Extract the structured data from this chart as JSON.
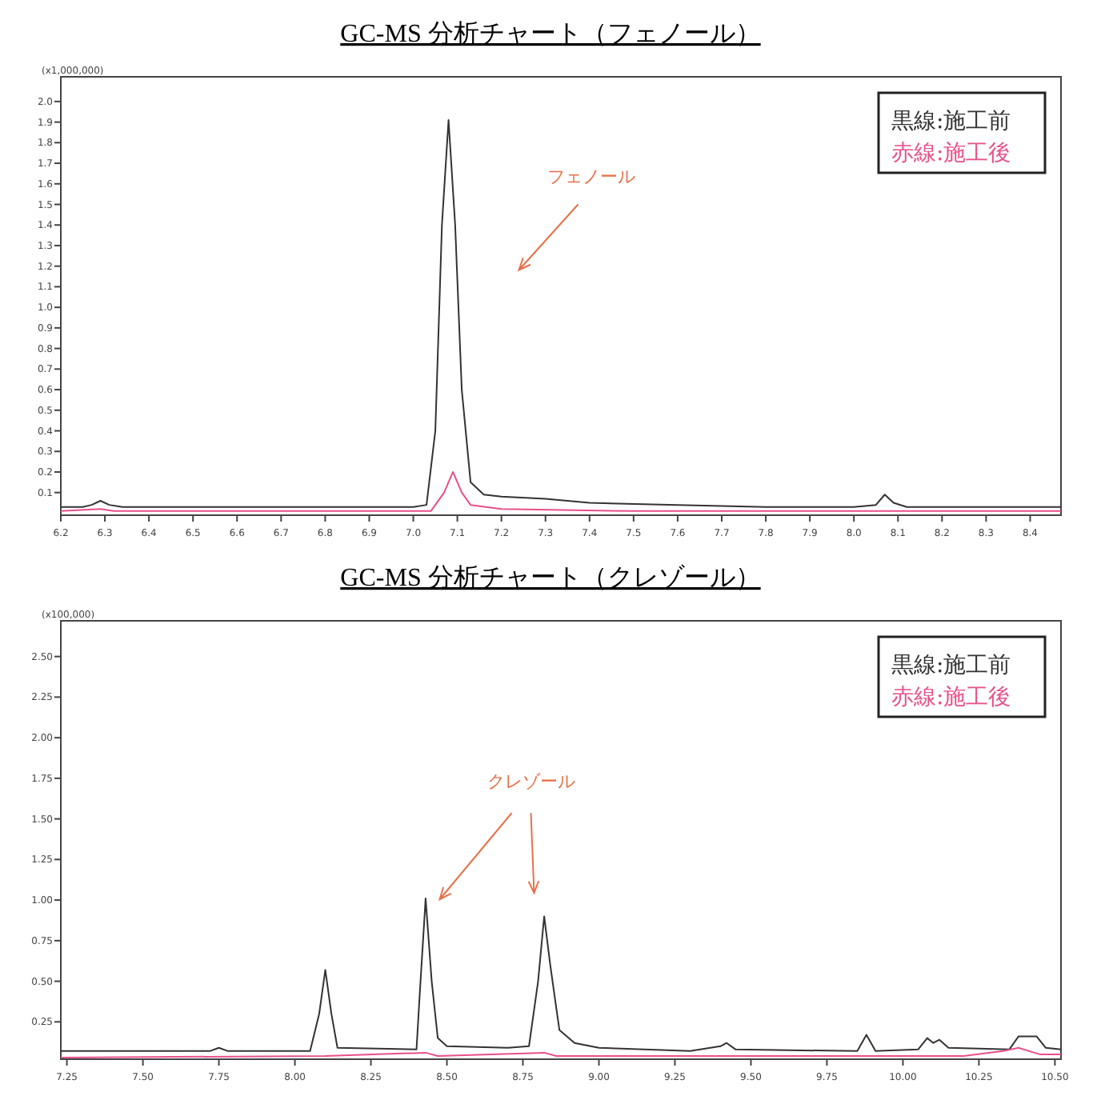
{
  "chart_data": [
    {
      "type": "line",
      "title": "GC-MS 分析チャート（フェノール）",
      "legend": "top right",
      "grid": false,
      "marker": "none",
      "line_style": "solid",
      "xlim": [
        6.2,
        8.47
      ],
      "xticks": [
        6.2,
        6.3,
        6.4,
        6.5,
        6.6,
        6.7,
        6.8,
        6.9,
        {
          "value": 7,
          "label": "7.0"
        },
        7.1,
        7.2,
        7.3,
        7.4,
        7.5,
        7.6,
        7.7,
        7.8,
        7.9,
        {
          "value": 8,
          "label": "8.0"
        },
        8.1,
        8.2,
        8.3,
        8.4
      ],
      "ylim": [
        -0.01,
        2.12
      ],
      "yticks": [
        0.1,
        0.2,
        0.3,
        0.4,
        0.5,
        0.6,
        0.7,
        0.8,
        0.9,
        {
          "value": 1,
          "label": "1.0"
        },
        1.1,
        1.2,
        1.3,
        1.4,
        1.5,
        1.6,
        1.7,
        1.8,
        1.9,
        {
          "value": 2,
          "label": "2.0"
        }
      ],
      "annotations": [
        "(x1,000,000)",
        "フェノール"
      ],
      "series": [
        {
          "name": "黒線:施工前",
          "color": "#333333",
          "x": [
            6.2,
            6.25,
            6.27,
            6.29,
            6.31,
            6.34,
            6.8,
            7.0,
            7.03,
            7.05,
            7.065,
            7.08,
            7.095,
            7.11,
            7.13,
            7.16,
            7.2,
            7.3,
            7.4,
            7.6,
            7.8,
            8.0,
            8.05,
            8.07,
            8.09,
            8.12,
            8.3,
            8.47
          ],
          "values": [
            0.03,
            0.03,
            0.04,
            0.06,
            0.04,
            0.03,
            0.03,
            0.03,
            0.04,
            0.4,
            1.4,
            1.91,
            1.4,
            0.6,
            0.15,
            0.09,
            0.08,
            0.07,
            0.05,
            0.04,
            0.03,
            0.03,
            0.04,
            0.09,
            0.05,
            0.03,
            0.03,
            0.03
          ]
        },
        {
          "name": "赤線:施工後",
          "color": "#e8508a",
          "x": [
            6.2,
            6.29,
            6.32,
            7.04,
            7.07,
            7.09,
            7.11,
            7.13,
            7.2,
            7.5,
            8.47
          ],
          "values": [
            0.01,
            0.02,
            0.01,
            0.01,
            0.1,
            0.2,
            0.1,
            0.04,
            0.02,
            0.01,
            0.01
          ]
        }
      ]
    },
    {
      "type": "line",
      "title": "GC-MS 分析チャート（クレゾール）",
      "legend": "top right",
      "grid": false,
      "marker": "none",
      "line_style": "solid",
      "xlim": [
        7.23,
        10.52
      ],
      "xticks": [
        7.25,
        {
          "value": 7.5,
          "label": "7.50"
        },
        7.75,
        {
          "value": 8,
          "label": "8.00"
        },
        8.25,
        {
          "value": 8.5,
          "label": "8.50"
        },
        8.75,
        {
          "value": 9,
          "label": "9.00"
        },
        9.25,
        {
          "value": 9.5,
          "label": "9.50"
        },
        9.75,
        {
          "value": 10,
          "label": "10.00"
        },
        10.25,
        {
          "value": 10.5,
          "label": "10.50"
        }
      ],
      "ylim": [
        0.02,
        2.72
      ],
      "yticks": [
        0.25,
        {
          "value": 0.5,
          "label": "0.50"
        },
        0.75,
        {
          "value": 1,
          "label": "1.00"
        },
        1.25,
        {
          "value": 1.5,
          "label": "1.50"
        },
        1.75,
        {
          "value": 2,
          "label": "2.00"
        },
        2.25,
        {
          "value": 2.5,
          "label": "2.50"
        }
      ],
      "annotations": [
        "(x100,000)",
        "クレゾール"
      ],
      "series": [
        {
          "name": "黒線:施工前",
          "color": "#333333",
          "x": [
            7.23,
            7.5,
            7.72,
            7.75,
            7.78,
            8.05,
            8.08,
            8.1,
            8.12,
            8.14,
            8.4,
            8.41,
            8.43,
            8.45,
            8.47,
            8.5,
            8.7,
            8.77,
            8.8,
            8.82,
            8.84,
            8.87,
            8.92,
            9.0,
            9.3,
            9.4,
            9.42,
            9.45,
            9.85,
            9.88,
            9.91,
            10.05,
            10.08,
            10.1,
            10.12,
            10.15,
            10.35,
            10.38,
            10.44,
            10.47,
            10.52
          ],
          "values": [
            0.07,
            0.07,
            0.07,
            0.09,
            0.07,
            0.07,
            0.3,
            0.57,
            0.3,
            0.09,
            0.08,
            0.4,
            1.01,
            0.5,
            0.15,
            0.1,
            0.09,
            0.1,
            0.5,
            0.9,
            0.6,
            0.2,
            0.12,
            0.09,
            0.07,
            0.1,
            0.12,
            0.08,
            0.07,
            0.17,
            0.07,
            0.08,
            0.15,
            0.12,
            0.14,
            0.09,
            0.08,
            0.16,
            0.16,
            0.09,
            0.08
          ]
        },
        {
          "name": "赤線:施工後",
          "color": "#e8508a",
          "x": [
            7.23,
            8.1,
            8.43,
            8.47,
            8.82,
            8.86,
            9.4,
            10.2,
            10.33,
            10.38,
            10.45,
            10.52
          ],
          "values": [
            0.03,
            0.04,
            0.06,
            0.04,
            0.06,
            0.04,
            0.04,
            0.04,
            0.07,
            0.09,
            0.05,
            0.05
          ]
        }
      ]
    }
  ]
}
